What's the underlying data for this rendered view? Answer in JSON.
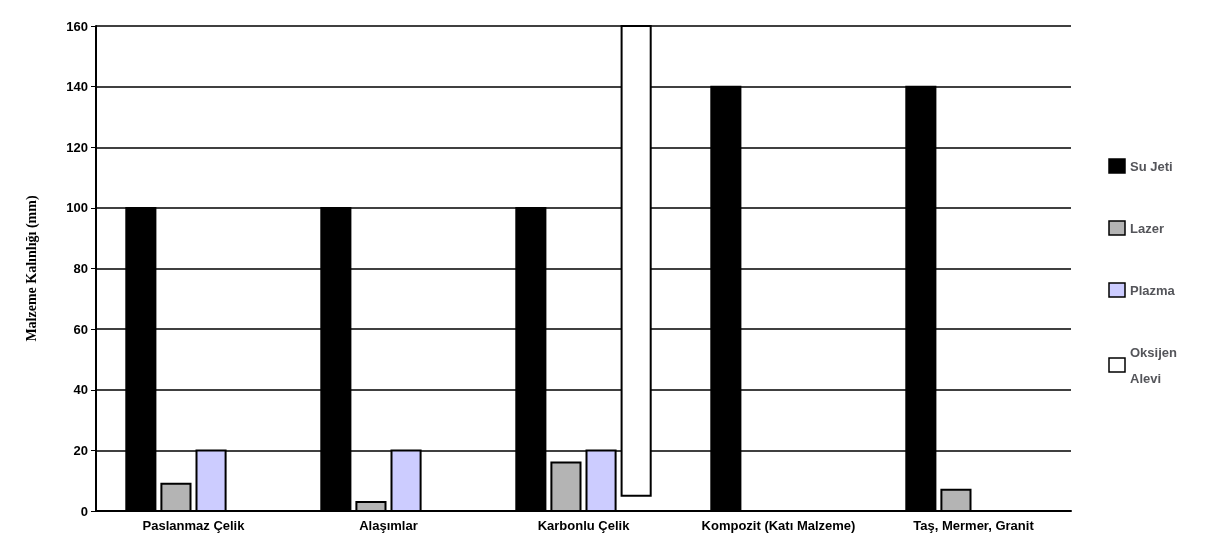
{
  "chart_data": {
    "type": "bar",
    "ylabel": "Malzeme Kalınlığı (mm)",
    "categories": [
      "Paslanmaz Çelik",
      "Alaşımlar",
      "Karbonlu Çelik",
      "Kompozit (Katı Malzeme)",
      "Taş, Mermer, Granit"
    ],
    "series": [
      {
        "name": "Su Jeti",
        "color": "#000000",
        "values": [
          100,
          100,
          100,
          140,
          140
        ]
      },
      {
        "name": "Lazer",
        "color": "#b4b4b4",
        "values": [
          9,
          3,
          16,
          null,
          7
        ]
      },
      {
        "name": "Plazma",
        "color": "#ccccff",
        "values": [
          20,
          20,
          20,
          null,
          null
        ]
      },
      {
        "name": "Oksijen Alevi",
        "color": "#ffffff",
        "values": [
          null,
          null,
          155,
          null,
          null
        ],
        "base": [
          null,
          null,
          5,
          null,
          null
        ]
      }
    ],
    "ylim": [
      0,
      160
    ],
    "yticks": [
      0,
      20,
      40,
      60,
      80,
      100,
      120,
      140,
      160
    ],
    "grid": "y",
    "legend": "right"
  }
}
